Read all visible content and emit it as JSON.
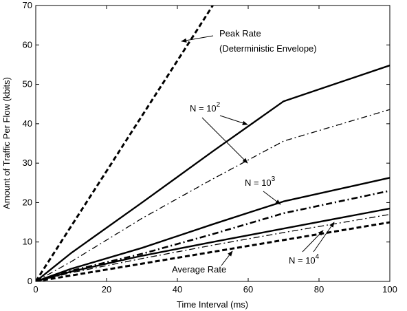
{
  "chart_data": {
    "type": "line",
    "title": "",
    "xlabel": "Time Interval (ms)",
    "ylabel": "Amount of Traffic Per Flow (kbits)",
    "xlim": [
      0,
      100
    ],
    "ylim": [
      0,
      70
    ],
    "xticks": [
      0,
      20,
      40,
      60,
      80,
      100
    ],
    "yticks": [
      0,
      10,
      20,
      30,
      40,
      50,
      60,
      70
    ],
    "grid": false,
    "series": [
      {
        "id": "peak-rate",
        "name": "Peak Rate (Deterministic Envelope)",
        "style": "dashed-thick",
        "color": "#000000",
        "points": [
          [
            0,
            0
          ],
          [
            50,
            70
          ]
        ]
      },
      {
        "id": "n100-solid",
        "name": "N = 10^2",
        "style": "solid",
        "color": "#000000",
        "points": [
          [
            0,
            0
          ],
          [
            10,
            7.2
          ],
          [
            30,
            20
          ],
          [
            50,
            33
          ],
          [
            70,
            45.7
          ],
          [
            100,
            54.8
          ]
        ]
      },
      {
        "id": "n100-dashdot",
        "name": "N = 10^2",
        "style": "dashdot-thin",
        "color": "#000000",
        "points": [
          [
            0,
            0
          ],
          [
            10,
            5
          ],
          [
            30,
            16
          ],
          [
            50,
            26
          ],
          [
            70,
            35.6
          ],
          [
            100,
            43.6
          ]
        ]
      },
      {
        "id": "n1000-solid",
        "name": "N = 10^3",
        "style": "solid",
        "color": "#000000",
        "points": [
          [
            0,
            0
          ],
          [
            10,
            3.2
          ],
          [
            30,
            8.5
          ],
          [
            50,
            14.5
          ],
          [
            70,
            20.3
          ],
          [
            100,
            26.3
          ]
        ]
      },
      {
        "id": "n1000-dashdot",
        "name": "N = 10^3",
        "style": "dashdot-thick",
        "color": "#000000",
        "points": [
          [
            0,
            0
          ],
          [
            10,
            2.7
          ],
          [
            30,
            7
          ],
          [
            50,
            12
          ],
          [
            70,
            17.3
          ],
          [
            100,
            23
          ]
        ]
      },
      {
        "id": "n10000-solid",
        "name": "N = 10^4",
        "style": "solid",
        "color": "#000000",
        "points": [
          [
            0,
            0
          ],
          [
            10,
            2.5
          ],
          [
            30,
            6.5
          ],
          [
            50,
            10
          ],
          [
            70,
            13.4
          ],
          [
            100,
            18.5
          ]
        ]
      },
      {
        "id": "n10000-dashdot",
        "name": "N = 10^4",
        "style": "dashdot-thin",
        "color": "#000000",
        "points": [
          [
            0,
            0
          ],
          [
            10,
            2.2
          ],
          [
            30,
            5.8
          ],
          [
            50,
            9.2
          ],
          [
            70,
            12.4
          ],
          [
            100,
            17
          ]
        ]
      },
      {
        "id": "average-rate",
        "name": "Average Rate",
        "style": "dashed-thick",
        "color": "#000000",
        "points": [
          [
            0,
            0
          ],
          [
            100,
            15
          ]
        ]
      }
    ],
    "annotations": [
      {
        "id": "peak-rate",
        "lines": [
          "Peak Rate",
          "(Deterministic Envelope)"
        ],
        "base": "",
        "exp": ""
      },
      {
        "id": "n100",
        "lines": [],
        "base": "N = 10",
        "exp": "2"
      },
      {
        "id": "n1000",
        "lines": [],
        "base": "N = 10",
        "exp": "3"
      },
      {
        "id": "n10000",
        "lines": [],
        "base": "N = 10",
        "exp": "4"
      },
      {
        "id": "average-rate",
        "lines": [
          "Average Rate"
        ],
        "base": "",
        "exp": ""
      }
    ]
  }
}
